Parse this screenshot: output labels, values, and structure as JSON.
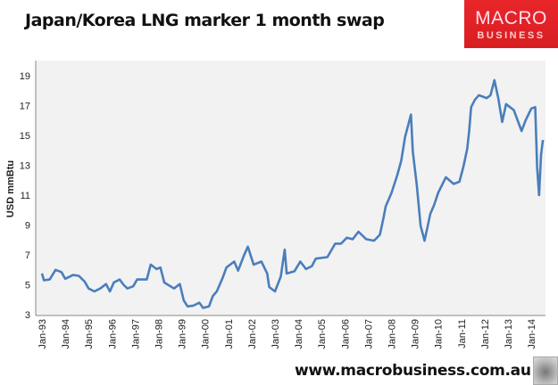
{
  "header": {
    "title": "Japan/Korea LNG marker 1 month swap"
  },
  "logo": {
    "line1": "MACRO",
    "line2": "BUSINESS",
    "color": "#e0232a"
  },
  "footer": {
    "url": "www.macrobusiness.com.au"
  },
  "chart_data": {
    "type": "line",
    "title": "Japan/Korea LNG marker 1 month swap",
    "xlabel": "",
    "ylabel": "USD mmBtu",
    "ylim": [
      3,
      20
    ],
    "yticks": [
      3,
      5,
      7,
      9,
      11,
      13,
      15,
      17,
      19
    ],
    "xticks": [
      "Jan-93",
      "Jan-94",
      "Jan-95",
      "Jan-96",
      "Jan-97",
      "Jan-98",
      "Jan-99",
      "Jan-00",
      "Jan-01",
      "Jan-02",
      "Jan-03",
      "Jan-04",
      "Jan-05",
      "Jan-06",
      "Jan-07",
      "Jan-08",
      "Jan-09",
      "Jan-10",
      "Jan-11",
      "Jan-12",
      "Jan-13",
      "Jan-14"
    ],
    "grid": false,
    "legend": "none",
    "line_color": "#4a7ebb",
    "plot_background": "#f2f2f2",
    "series": [
      {
        "points": [
          [
            "1993-01",
            5.75
          ],
          [
            "1993-02",
            5.3
          ],
          [
            "1993-05",
            5.35
          ],
          [
            "1993-08",
            6.0
          ],
          [
            "1993-11",
            5.85
          ],
          [
            "1994-01",
            5.4
          ],
          [
            "1994-05",
            5.65
          ],
          [
            "1994-08",
            5.6
          ],
          [
            "1994-11",
            5.2
          ],
          [
            "1995-01",
            4.75
          ],
          [
            "1995-04",
            4.55
          ],
          [
            "1995-07",
            4.75
          ],
          [
            "1995-10",
            5.05
          ],
          [
            "1995-12",
            4.55
          ],
          [
            "1996-02",
            5.15
          ],
          [
            "1996-05",
            5.35
          ],
          [
            "1996-07",
            5.0
          ],
          [
            "1996-09",
            4.75
          ],
          [
            "1996-12",
            4.9
          ],
          [
            "1997-02",
            5.35
          ],
          [
            "1997-07",
            5.35
          ],
          [
            "1997-09",
            6.35
          ],
          [
            "1997-12",
            6.05
          ],
          [
            "1998-02",
            6.15
          ],
          [
            "1998-04",
            5.15
          ],
          [
            "1998-09",
            4.75
          ],
          [
            "1998-12",
            5.05
          ],
          [
            "1999-02",
            3.95
          ],
          [
            "1999-04",
            3.55
          ],
          [
            "1999-07",
            3.6
          ],
          [
            "1999-10",
            3.8
          ],
          [
            "1999-12",
            3.45
          ],
          [
            "2000-03",
            3.55
          ],
          [
            "2000-05",
            4.25
          ],
          [
            "2000-07",
            4.55
          ],
          [
            "2000-10",
            5.45
          ],
          [
            "2000-12",
            6.15
          ],
          [
            "2001-04",
            6.55
          ],
          [
            "2001-06",
            5.95
          ],
          [
            "2001-09",
            6.95
          ],
          [
            "2001-11",
            7.55
          ],
          [
            "2002-02",
            6.35
          ],
          [
            "2002-06",
            6.55
          ],
          [
            "2002-09",
            5.75
          ],
          [
            "2002-10",
            4.85
          ],
          [
            "2003-01",
            4.55
          ],
          [
            "2003-04",
            5.55
          ],
          [
            "2003-06",
            7.35
          ],
          [
            "2003-07",
            5.75
          ],
          [
            "2003-11",
            5.9
          ],
          [
            "2004-02",
            6.55
          ],
          [
            "2004-05",
            6.05
          ],
          [
            "2004-08",
            6.25
          ],
          [
            "2004-10",
            6.75
          ],
          [
            "2005-04",
            6.85
          ],
          [
            "2005-08",
            7.75
          ],
          [
            "2005-11",
            7.75
          ],
          [
            "2006-02",
            8.15
          ],
          [
            "2006-05",
            8.05
          ],
          [
            "2006-08",
            8.55
          ],
          [
            "2006-12",
            8.05
          ],
          [
            "2007-04",
            7.95
          ],
          [
            "2007-07",
            8.35
          ],
          [
            "2007-09",
            9.55
          ],
          [
            "2007-10",
            10.25
          ],
          [
            "2008-01",
            11.15
          ],
          [
            "2008-04",
            12.35
          ],
          [
            "2008-06",
            13.3
          ],
          [
            "2008-08",
            14.9
          ],
          [
            "2008-10",
            15.9
          ],
          [
            "2008-11",
            16.4
          ],
          [
            "2008-12",
            13.9
          ],
          [
            "2009-02",
            11.7
          ],
          [
            "2009-04",
            8.95
          ],
          [
            "2009-06",
            7.95
          ],
          [
            "2009-07",
            8.55
          ],
          [
            "2009-09",
            9.75
          ],
          [
            "2009-11",
            10.35
          ],
          [
            "2010-01",
            11.15
          ],
          [
            "2010-05",
            12.2
          ],
          [
            "2010-09",
            11.75
          ],
          [
            "2010-12",
            11.9
          ],
          [
            "2011-02",
            12.9
          ],
          [
            "2011-04",
            14.1
          ],
          [
            "2011-05",
            15.3
          ],
          [
            "2011-06",
            16.9
          ],
          [
            "2011-08",
            17.4
          ],
          [
            "2011-10",
            17.7
          ],
          [
            "2012-02",
            17.5
          ],
          [
            "2012-04",
            17.7
          ],
          [
            "2012-06",
            18.7
          ],
          [
            "2012-08",
            17.5
          ],
          [
            "2012-10",
            15.9
          ],
          [
            "2012-12",
            17.1
          ],
          [
            "2013-04",
            16.7
          ],
          [
            "2013-08",
            15.3
          ],
          [
            "2013-10",
            16.0
          ],
          [
            "2014-01",
            16.8
          ],
          [
            "2014-03",
            16.9
          ],
          [
            "2014-04",
            12.9
          ],
          [
            "2014-05",
            11.0
          ],
          [
            "2014-06",
            13.7
          ],
          [
            "2014-07",
            14.7
          ]
        ]
      }
    ]
  }
}
